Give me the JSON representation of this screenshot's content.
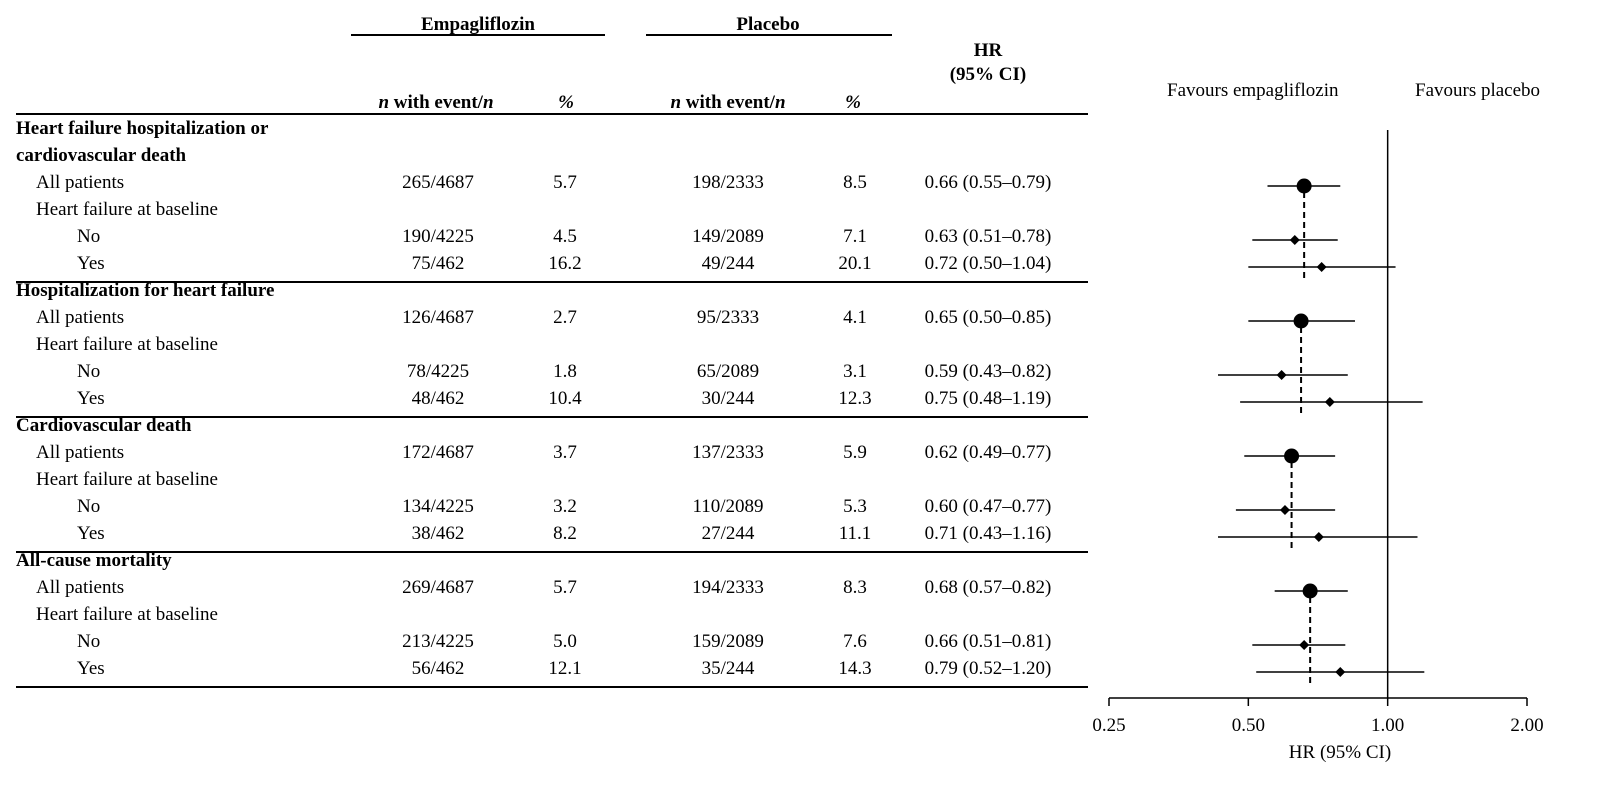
{
  "chart_data": {
    "type": "forest",
    "header": {
      "group_empagliflozin": "Empagliflozin",
      "group_placebo": "Placebo",
      "n_with_event_prefix": "n",
      "n_with_event_middle": " with event/",
      "n_with_event_suffix": "n",
      "pct": "%",
      "hr_line1": "HR",
      "hr_line2": "(95% CI)"
    },
    "favours_left": "Favours empagliflozin",
    "favours_right": "Favours placebo",
    "xlabel": "HR (95% CI)",
    "x_scale": "log",
    "x_ticks": [
      "0.25",
      "0.50",
      "1.00",
      "2.00"
    ],
    "x_tick_values": [
      0.25,
      0.5,
      1.0,
      2.0
    ],
    "reference_line": 1.0,
    "sections": [
      {
        "title_lines": [
          "Heart failure hospitalization or",
          "cardiovascular death"
        ],
        "rows": [
          {
            "label": "All patients",
            "level": 1,
            "empa": "265/4687",
            "empa_pct": "5.7",
            "plac": "198/2333",
            "plac_pct": "8.5",
            "hr_text": "0.66 (0.55–0.79)",
            "hr": 0.66,
            "lo": 0.55,
            "hi": 0.79,
            "marker": "circle"
          },
          {
            "label": "Heart failure at baseline",
            "level": 1
          },
          {
            "label": "No",
            "level": 2,
            "empa": "190/4225",
            "empa_pct": "4.5",
            "plac": "149/2089",
            "plac_pct": "7.1",
            "hr_text": "0.63 (0.51–0.78)",
            "hr": 0.63,
            "lo": 0.51,
            "hi": 0.78,
            "marker": "diamond"
          },
          {
            "label": "Yes",
            "level": 2,
            "empa": "75/462",
            "empa_pct": "16.2",
            "plac": "49/244",
            "plac_pct": "20.1",
            "hr_text": "0.72 (0.50–1.04)",
            "hr": 0.72,
            "lo": 0.5,
            "hi": 1.04,
            "marker": "diamond"
          }
        ]
      },
      {
        "title_lines": [
          "Hospitalization for heart failure"
        ],
        "rows": [
          {
            "label": "All patients",
            "level": 1,
            "empa": "126/4687",
            "empa_pct": "2.7",
            "plac": "95/2333",
            "plac_pct": "4.1",
            "hr_text": "0.65 (0.50–0.85)",
            "hr": 0.65,
            "lo": 0.5,
            "hi": 0.85,
            "marker": "circle"
          },
          {
            "label": "Heart failure at baseline",
            "level": 1
          },
          {
            "label": "No",
            "level": 2,
            "empa": "78/4225",
            "empa_pct": "1.8",
            "plac": "65/2089",
            "plac_pct": "3.1",
            "hr_text": "0.59 (0.43–0.82)",
            "hr": 0.59,
            "lo": 0.43,
            "hi": 0.82,
            "marker": "diamond"
          },
          {
            "label": "Yes",
            "level": 2,
            "empa": "48/462",
            "empa_pct": "10.4",
            "plac": "30/244",
            "plac_pct": "12.3",
            "hr_text": "0.75 (0.48–1.19)",
            "hr": 0.75,
            "lo": 0.48,
            "hi": 1.19,
            "marker": "diamond"
          }
        ]
      },
      {
        "title_lines": [
          "Cardiovascular death"
        ],
        "rows": [
          {
            "label": "All patients",
            "level": 1,
            "empa": "172/4687",
            "empa_pct": "3.7",
            "plac": "137/2333",
            "plac_pct": "5.9",
            "hr_text": "0.62 (0.49–0.77)",
            "hr": 0.62,
            "lo": 0.49,
            "hi": 0.77,
            "marker": "circle"
          },
          {
            "label": "Heart failure at baseline",
            "level": 1
          },
          {
            "label": "No",
            "level": 2,
            "empa": "134/4225",
            "empa_pct": "3.2",
            "plac": "110/2089",
            "plac_pct": "5.3",
            "hr_text": "0.60 (0.47–0.77)",
            "hr": 0.6,
            "lo": 0.47,
            "hi": 0.77,
            "marker": "diamond"
          },
          {
            "label": "Yes",
            "level": 2,
            "empa": "38/462",
            "empa_pct": "8.2",
            "plac": "27/244",
            "plac_pct": "11.1",
            "hr_text": "0.71 (0.43–1.16)",
            "hr": 0.71,
            "lo": 0.43,
            "hi": 1.16,
            "marker": "diamond"
          }
        ]
      },
      {
        "title_lines": [
          "All-cause mortality"
        ],
        "rows": [
          {
            "label": "All patients",
            "level": 1,
            "empa": "269/4687",
            "empa_pct": "5.7",
            "plac": "194/2333",
            "plac_pct": "8.3",
            "hr_text": "0.68 (0.57–0.82)",
            "hr": 0.68,
            "lo": 0.57,
            "hi": 0.82,
            "marker": "circle"
          },
          {
            "label": "Heart failure at baseline",
            "level": 1
          },
          {
            "label": "No",
            "level": 2,
            "empa": "213/4225",
            "empa_pct": "5.0",
            "plac": "159/2089",
            "plac_pct": "7.6",
            "hr_text": "0.66 (0.51–0.81)",
            "hr": 0.66,
            "lo": 0.51,
            "hi": 0.81,
            "marker": "diamond"
          },
          {
            "label": "Yes",
            "level": 2,
            "empa": "56/462",
            "empa_pct": "12.1",
            "plac": "35/244",
            "plac_pct": "14.3",
            "hr_text": "0.79 (0.52–1.20)",
            "hr": 0.79,
            "lo": 0.52,
            "hi": 1.2,
            "marker": "diamond"
          }
        ]
      }
    ]
  }
}
